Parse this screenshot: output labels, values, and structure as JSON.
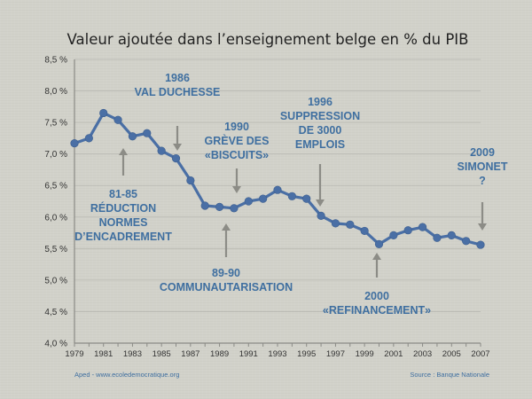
{
  "chart_data": {
    "type": "line",
    "title": "Valeur ajoutée dans l’enseignement belge en % du PIB",
    "ylim": [
      4.0,
      8.5
    ],
    "yticks": [
      {
        "value": 4.0,
        "label": "4,0 %"
      },
      {
        "value": 4.5,
        "label": "4,5 %"
      },
      {
        "value": 5.0,
        "label": "5,0 %"
      },
      {
        "value": 5.5,
        "label": "5,5 %"
      },
      {
        "value": 6.0,
        "label": "6,0 %"
      },
      {
        "value": 6.5,
        "label": "6,5 %"
      },
      {
        "value": 7.0,
        "label": "7,0 %"
      },
      {
        "value": 7.5,
        "label": "7,5 %"
      },
      {
        "value": 8.0,
        "label": "8,0 %"
      },
      {
        "value": 8.5,
        "label": "8,5 %"
      }
    ],
    "xlim": [
      1979,
      2007
    ],
    "xticks": [
      "1979",
      "1981",
      "1983",
      "1985",
      "1987",
      "1989",
      "1991",
      "1993",
      "1995",
      "1997",
      "1999",
      "2001",
      "2003",
      "2005",
      "2007"
    ],
    "grid": true,
    "series": [
      {
        "color": "#4a6fa5",
        "x": [
          1979,
          1980,
          1981,
          1982,
          1983,
          1984,
          1985,
          1986,
          1987,
          1988,
          1989,
          1990,
          1991,
          1992,
          1993,
          1994,
          1995,
          1996,
          1997,
          1998,
          1999,
          2000,
          2001,
          2002,
          2003,
          2004,
          2005,
          2006,
          2007
        ],
        "values": [
          7.17,
          7.25,
          7.65,
          7.54,
          7.28,
          7.33,
          7.05,
          6.93,
          6.58,
          6.18,
          6.16,
          6.14,
          6.25,
          6.29,
          6.43,
          6.33,
          6.29,
          6.02,
          5.9,
          5.88,
          5.78,
          5.57,
          5.71,
          5.79,
          5.84,
          5.67,
          5.71,
          5.62,
          5.56
        ]
      }
    ],
    "annotations": [
      {
        "lines": [
          "1986",
          "VAL DUCHESSE"
        ],
        "x": 1986,
        "arrow": "down"
      },
      {
        "lines": [
          "81-85",
          "RÉDUCTION",
          "NORMES",
          "D’ENCADREMENT"
        ],
        "x": 1982,
        "arrow": "up"
      },
      {
        "lines": [
          "1990",
          "GRÈVE DES",
          "«BISCUITS»"
        ],
        "x": 1990,
        "arrow": "down"
      },
      {
        "lines": [
          "1996",
          "SUPPRESSION",
          "DE 3000",
          "EMPLOIS"
        ],
        "x": 1996,
        "arrow": "down"
      },
      {
        "lines": [
          "89-90",
          "COMMUNAUTARISATION"
        ],
        "x": 1989.5,
        "arrow": "up"
      },
      {
        "lines": [
          "2000",
          "«REFINANCEMENT»"
        ],
        "x": 2000,
        "arrow": "up"
      },
      {
        "lines": [
          "2009",
          "SIMONET",
          "?"
        ],
        "x": 2009,
        "arrow": "down"
      }
    ],
    "colors": {
      "line": "#4a6fa5",
      "annotation": "#3f6fa0",
      "axis": "#8a8a86",
      "grid": "#b9b9b2"
    }
  },
  "footer": {
    "left": "Aped - www.ecoledemocratique.org",
    "right": "Source : Banque Nationale"
  }
}
